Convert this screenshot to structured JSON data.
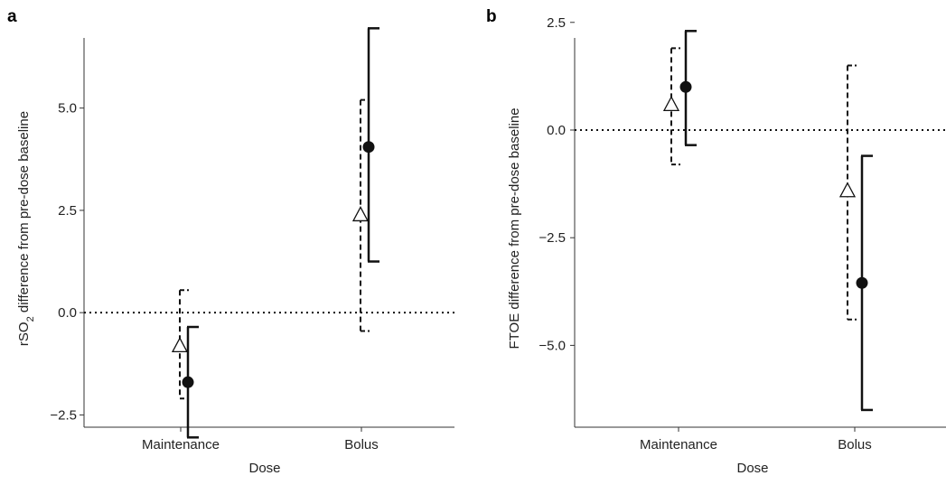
{
  "chart_data": [
    {
      "panel_label": "a",
      "type": "scatter",
      "categories": [
        "Maintenance",
        "Bolus"
      ],
      "xlabel": "Dose",
      "ylabel": "rSO",
      "ylabel_sub": "2",
      "ylabel_rest": " difference from pre-dose baseline",
      "ylim": [
        -2.8,
        7.2
      ],
      "yticks": [
        -2.5,
        0.0,
        2.5,
        5.0
      ],
      "ytick_labels": [
        "−2.5",
        "0.0",
        "2.5",
        "5.0"
      ],
      "reference_line": 0,
      "series": [
        {
          "marker": "open-triangle",
          "line_style": "dashed",
          "points": [
            {
              "category": "Maintenance",
              "value": -0.8,
              "lower": -2.1,
              "upper": 0.55
            },
            {
              "category": "Bolus",
              "value": 2.4,
              "lower": -0.45,
              "upper": 5.2
            }
          ]
        },
        {
          "marker": "filled-circle",
          "line_style": "solid",
          "points": [
            {
              "category": "Maintenance",
              "value": -1.7,
              "lower": -3.05,
              "upper": -0.35
            },
            {
              "category": "Bolus",
              "value": 4.05,
              "lower": 1.25,
              "upper": 6.95
            }
          ]
        }
      ]
    },
    {
      "panel_label": "b",
      "type": "scatter",
      "categories": [
        "Maintenance",
        "Bolus"
      ],
      "xlabel": "Dose",
      "ylabel": "FTOE difference from pre-dose baseline",
      "ylim": [
        -6.9,
        2.6
      ],
      "yticks": [
        -5.0,
        -2.5,
        0.0,
        2.5
      ],
      "ytick_labels": [
        "−5.0",
        "−2.5",
        "0.0",
        "2.5"
      ],
      "reference_line": 0,
      "series": [
        {
          "marker": "open-triangle",
          "line_style": "dashed",
          "points": [
            {
              "category": "Maintenance",
              "value": 0.6,
              "lower": -0.8,
              "upper": 1.9
            },
            {
              "category": "Bolus",
              "value": -1.4,
              "lower": -4.4,
              "upper": 1.5
            }
          ]
        },
        {
          "marker": "filled-circle",
          "line_style": "solid",
          "points": [
            {
              "category": "Maintenance",
              "value": 1.0,
              "lower": -0.35,
              "upper": 2.3
            },
            {
              "category": "Bolus",
              "value": -3.55,
              "lower": -6.5,
              "upper": -0.6
            }
          ]
        }
      ]
    }
  ]
}
